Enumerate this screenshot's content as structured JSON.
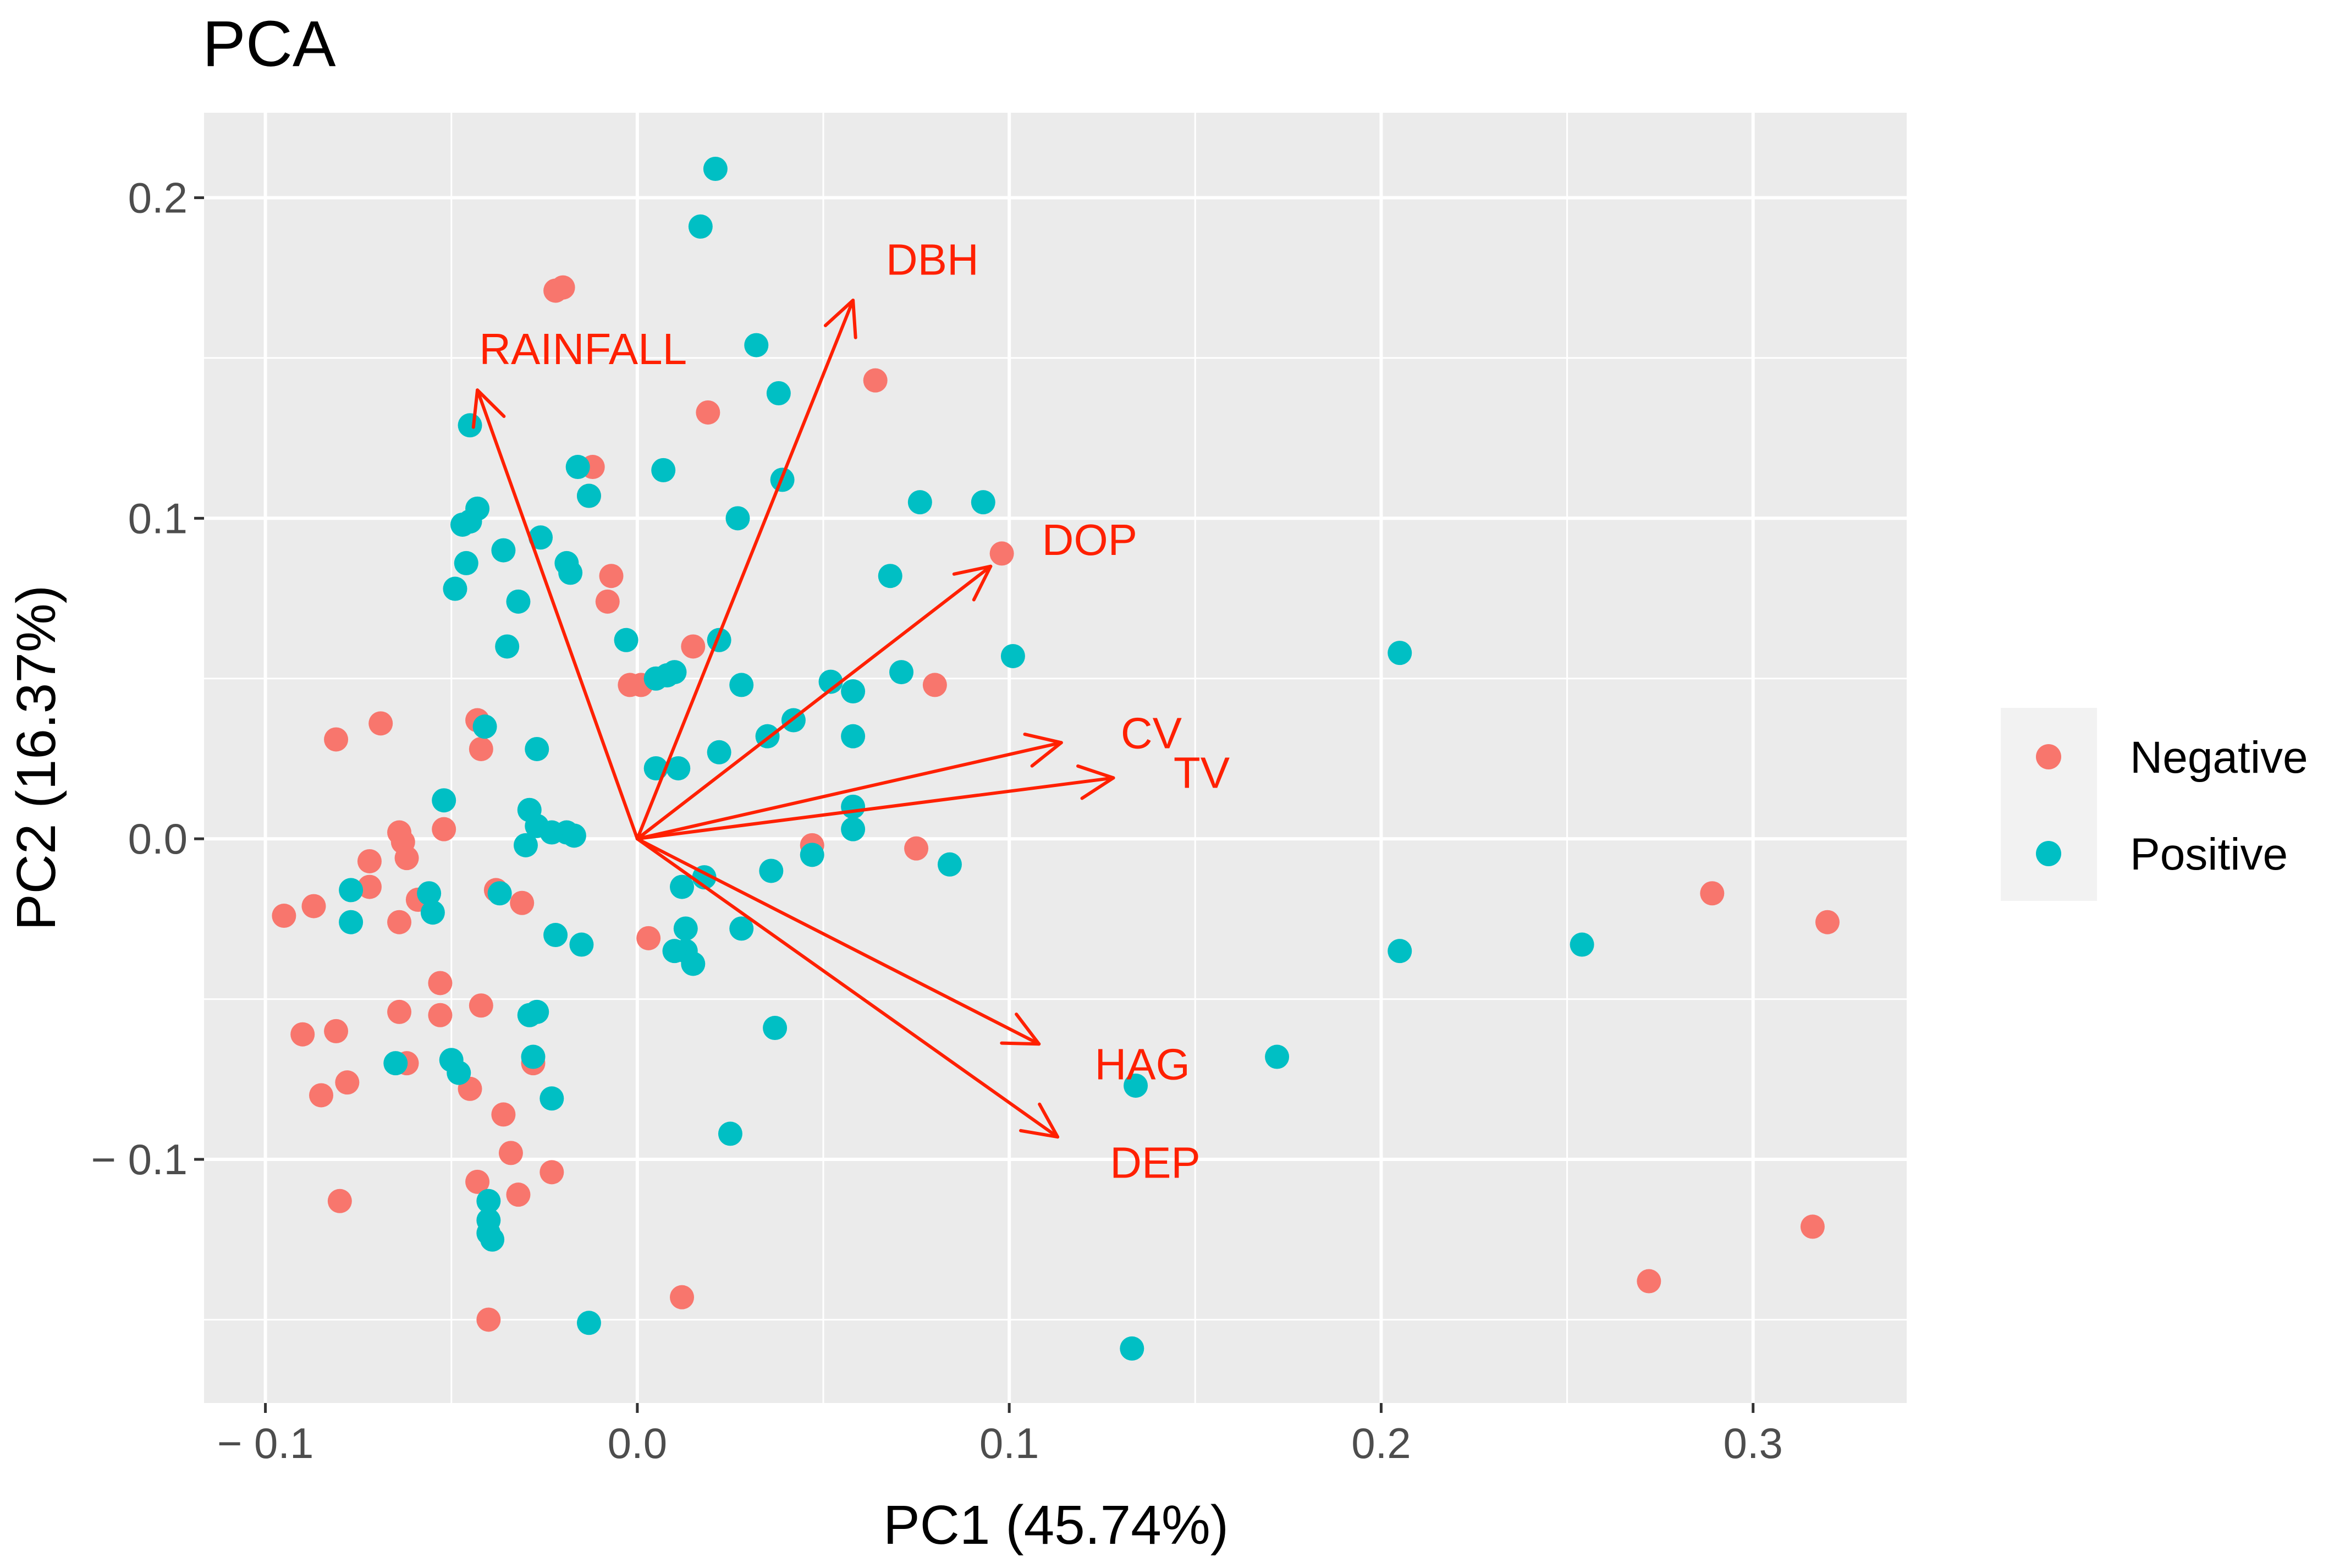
{
  "chart_data": {
    "type": "scatter",
    "title": "PCA",
    "xlabel": "PC1 (45.74%)",
    "ylabel": "PC2 (16.37%)",
    "xlim": [
      -0.1165,
      0.3413
    ],
    "ylim": [
      -0.176,
      0.2265
    ],
    "x_ticks": [
      {
        "value": -0.1,
        "label": "− 0.1"
      },
      {
        "value": 0.0,
        "label": "0.0"
      },
      {
        "value": 0.1,
        "label": "0.1"
      },
      {
        "value": 0.2,
        "label": "0.2"
      },
      {
        "value": 0.3,
        "label": "0.3"
      }
    ],
    "y_ticks": [
      {
        "value": 0.2,
        "label": "0.2"
      },
      {
        "value": 0.1,
        "label": "0.1"
      },
      {
        "value": 0.0,
        "label": "0.0"
      },
      {
        "value": -0.1,
        "label": "− 0.1"
      }
    ],
    "grid": true,
    "legend_position": "right",
    "series": [
      {
        "name": "Negative",
        "color": "#F8766D",
        "points": [
          [
            -0.022,
            0.171
          ],
          [
            -0.02,
            0.172
          ],
          [
            0.064,
            0.143
          ],
          [
            0.019,
            0.133
          ],
          [
            -0.012,
            0.116
          ],
          [
            -0.013,
            0.107
          ],
          [
            0.098,
            0.089
          ],
          [
            -0.007,
            0.082
          ],
          [
            -0.008,
            0.074
          ],
          [
            0.015,
            0.06
          ],
          [
            -0.002,
            0.048
          ],
          [
            0.001,
            0.048
          ],
          [
            0.08,
            0.048
          ],
          [
            -0.069,
            0.036
          ],
          [
            -0.081,
            0.031
          ],
          [
            -0.043,
            0.037
          ],
          [
            -0.042,
            0.028
          ],
          [
            -0.064,
            0.002
          ],
          [
            -0.063,
            -0.001
          ],
          [
            -0.062,
            -0.006
          ],
          [
            -0.052,
            0.003
          ],
          [
            -0.072,
            -0.007
          ],
          [
            -0.072,
            -0.015
          ],
          [
            -0.059,
            -0.019
          ],
          [
            -0.064,
            -0.026
          ],
          [
            0.047,
            -0.002
          ],
          [
            0.075,
            -0.003
          ],
          [
            -0.095,
            -0.024
          ],
          [
            -0.087,
            -0.021
          ],
          [
            -0.038,
            -0.016
          ],
          [
            -0.031,
            -0.02
          ],
          [
            0.003,
            -0.031
          ],
          [
            -0.053,
            -0.045
          ],
          [
            -0.053,
            -0.055
          ],
          [
            -0.064,
            -0.054
          ],
          [
            -0.042,
            -0.052
          ],
          [
            -0.09,
            -0.061
          ],
          [
            -0.081,
            -0.06
          ],
          [
            -0.062,
            -0.07
          ],
          [
            -0.028,
            -0.07
          ],
          [
            -0.078,
            -0.076
          ],
          [
            -0.085,
            -0.08
          ],
          [
            -0.045,
            -0.078
          ],
          [
            -0.036,
            -0.086
          ],
          [
            -0.034,
            -0.098
          ],
          [
            -0.023,
            -0.104
          ],
          [
            -0.043,
            -0.107
          ],
          [
            -0.032,
            -0.111
          ],
          [
            -0.08,
            -0.113
          ],
          [
            -0.04,
            -0.15
          ],
          [
            0.012,
            -0.143
          ],
          [
            0.289,
            -0.017
          ],
          [
            0.32,
            -0.026
          ],
          [
            0.272,
            -0.138
          ],
          [
            0.316,
            -0.121
          ]
        ]
      },
      {
        "name": "Positive",
        "color": "#00BFC4",
        "points": [
          [
            0.021,
            0.209
          ],
          [
            0.017,
            0.191
          ],
          [
            0.032,
            0.154
          ],
          [
            0.038,
            0.139
          ],
          [
            -0.045,
            0.129
          ],
          [
            -0.016,
            0.116
          ],
          [
            -0.013,
            0.107
          ],
          [
            0.007,
            0.115
          ],
          [
            0.039,
            0.112
          ],
          [
            0.027,
            0.1
          ],
          [
            0.076,
            0.105
          ],
          [
            0.093,
            0.105
          ],
          [
            -0.043,
            0.103
          ],
          [
            -0.047,
            0.098
          ],
          [
            -0.045,
            0.099
          ],
          [
            -0.026,
            0.094
          ],
          [
            -0.036,
            0.09
          ],
          [
            -0.046,
            0.086
          ],
          [
            -0.019,
            0.086
          ],
          [
            -0.018,
            0.083
          ],
          [
            0.068,
            0.082
          ],
          [
            -0.049,
            0.078
          ],
          [
            -0.032,
            0.074
          ],
          [
            -0.003,
            0.062
          ],
          [
            -0.035,
            0.06
          ],
          [
            0.022,
            0.062
          ],
          [
            0.101,
            0.057
          ],
          [
            0.205,
            0.058
          ],
          [
            0.005,
            0.05
          ],
          [
            0.008,
            0.051
          ],
          [
            0.01,
            0.052
          ],
          [
            0.028,
            0.048
          ],
          [
            0.052,
            0.049
          ],
          [
            0.058,
            0.046
          ],
          [
            0.071,
            0.052
          ],
          [
            0.042,
            0.037
          ],
          [
            0.035,
            0.032
          ],
          [
            0.058,
            0.032
          ],
          [
            -0.041,
            0.035
          ],
          [
            -0.027,
            0.028
          ],
          [
            0.022,
            0.027
          ],
          [
            0.005,
            0.022
          ],
          [
            0.011,
            0.022
          ],
          [
            0.058,
            0.01
          ],
          [
            -0.052,
            0.012
          ],
          [
            -0.029,
            0.009
          ],
          [
            -0.027,
            0.004
          ],
          [
            -0.023,
            0.002
          ],
          [
            -0.019,
            0.002
          ],
          [
            -0.017,
            0.001
          ],
          [
            -0.03,
            -0.002
          ],
          [
            0.058,
            0.003
          ],
          [
            0.036,
            -0.01
          ],
          [
            0.047,
            -0.005
          ],
          [
            0.084,
            -0.008
          ],
          [
            -0.077,
            -0.016
          ],
          [
            -0.056,
            -0.017
          ],
          [
            -0.055,
            -0.023
          ],
          [
            -0.077,
            -0.026
          ],
          [
            -0.037,
            -0.017
          ],
          [
            0.012,
            -0.015
          ],
          [
            0.018,
            -0.012
          ],
          [
            0.028,
            -0.028
          ],
          [
            0.013,
            -0.028
          ],
          [
            0.013,
            -0.035
          ],
          [
            0.01,
            -0.035
          ],
          [
            0.015,
            -0.039
          ],
          [
            -0.022,
            -0.03
          ],
          [
            -0.015,
            -0.033
          ],
          [
            -0.029,
            -0.055
          ],
          [
            -0.027,
            -0.054
          ],
          [
            -0.065,
            -0.07
          ],
          [
            -0.05,
            -0.069
          ],
          [
            -0.048,
            -0.073
          ],
          [
            -0.028,
            -0.068
          ],
          [
            -0.023,
            -0.081
          ],
          [
            0.037,
            -0.059
          ],
          [
            0.025,
            -0.092
          ],
          [
            -0.04,
            -0.113
          ],
          [
            -0.04,
            -0.119
          ],
          [
            -0.04,
            -0.123
          ],
          [
            -0.039,
            -0.125
          ],
          [
            -0.013,
            -0.151
          ],
          [
            0.134,
            -0.077
          ],
          [
            0.172,
            -0.068
          ],
          [
            0.205,
            -0.035
          ],
          [
            0.254,
            -0.033
          ],
          [
            0.133,
            -0.159
          ]
        ]
      }
    ],
    "arrows": [
      {
        "label": "DBH",
        "x": 0.058,
        "y": 0.168
      },
      {
        "label": "RAINFALL",
        "x": -0.043,
        "y": 0.14
      },
      {
        "label": "DOP",
        "x": 0.095,
        "y": 0.085
      },
      {
        "label": "CV",
        "x": 0.114,
        "y": 0.03
      },
      {
        "label": "TV",
        "x": 0.128,
        "y": 0.019
      },
      {
        "label": "HAG",
        "x": 0.108,
        "y": -0.064
      },
      {
        "label": "DEP",
        "x": 0.113,
        "y": -0.093
      }
    ],
    "arrow_color": "#FF2000"
  }
}
